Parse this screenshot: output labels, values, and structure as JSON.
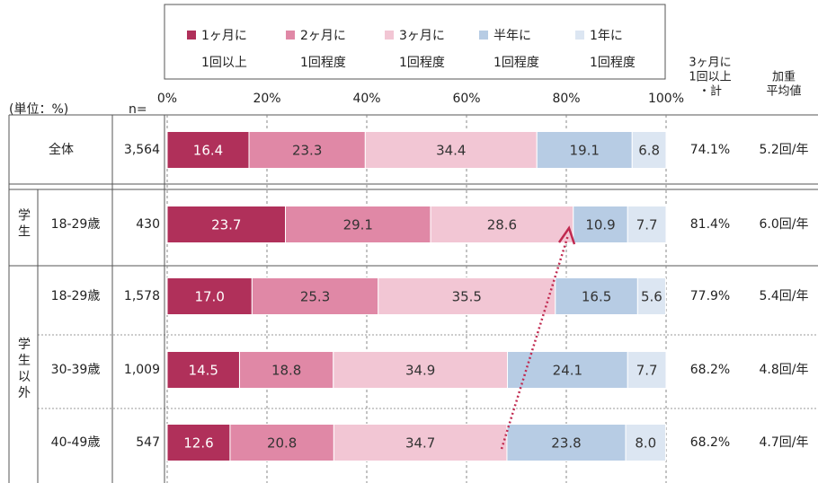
{
  "chart_data": {
    "type": "stacked_bar",
    "unit_label": "(単位：%)",
    "n_label": "n=",
    "groups": [
      {
        "label": null,
        "categories": [
          "全体"
        ]
      },
      {
        "label": "学生",
        "categories": [
          "18-29歳"
        ]
      },
      {
        "label": "学生以外",
        "categories": [
          "18-29歳",
          "30-39歳",
          "40-49歳"
        ]
      }
    ],
    "n": [
      3564,
      430,
      1578,
      1009,
      547
    ],
    "n_labels": [
      "3,564",
      "430",
      "1,578",
      "1,009",
      "547"
    ],
    "series": [
      {
        "name": [
          "1ヶ月に",
          "1回以上"
        ],
        "color": "#b0305a",
        "text_color": "#ffffff",
        "values": [
          16.4,
          23.7,
          17.0,
          14.5,
          12.6
        ],
        "value_labels": [
          "16.4",
          "23.7",
          "17.0",
          "14.5",
          "12.6"
        ]
      },
      {
        "name": [
          "2ヶ月に",
          "1回程度"
        ],
        "color": "#e088a6",
        "values": [
          23.3,
          29.1,
          25.3,
          18.8,
          20.8
        ]
      },
      {
        "name": [
          "3ヶ月に",
          "1回程度"
        ],
        "color": "#f2c6d4",
        "values": [
          34.4,
          28.6,
          35.5,
          34.9,
          34.7
        ]
      },
      {
        "name": [
          "半年に",
          "1回程度"
        ],
        "color": "#b7cce4",
        "values": [
          19.1,
          10.9,
          16.5,
          24.1,
          23.8
        ]
      },
      {
        "name": [
          "1年に",
          "1回程度"
        ],
        "color": "#dce6f2",
        "values": [
          6.8,
          7.7,
          5.6,
          7.7,
          8.0
        ],
        "value_labels": [
          "6.8",
          "7.7",
          "5.6",
          "7.7",
          "8.0"
        ]
      }
    ],
    "xlim": [
      0,
      100
    ],
    "xticks": [
      {
        "value": 0,
        "label": "0%"
      },
      {
        "value": 20,
        "label": "20%"
      },
      {
        "value": 40,
        "label": "40%"
      },
      {
        "value": 60,
        "label": "60%"
      },
      {
        "value": 80,
        "label": "80%"
      },
      {
        "value": 100,
        "label": "100%"
      }
    ],
    "grid": true,
    "columns": [
      {
        "header": [
          "3ヶ月に",
          "1回以上",
          "・計"
        ],
        "values": [
          74.1,
          81.4,
          77.9,
          68.2,
          68.2
        ],
        "value_labels": [
          "74.1%",
          "81.4%",
          "77.9%",
          "68.2%",
          "68.2%"
        ]
      },
      {
        "header": [
          "加重",
          "平均値"
        ],
        "values": [
          5.2,
          6.0,
          5.4,
          4.8,
          4.7
        ],
        "value_labels": [
          "5.2回/年",
          "6.0回/年",
          "5.4回/年",
          "4.8回/年",
          "4.7回/年"
        ]
      }
    ]
  }
}
